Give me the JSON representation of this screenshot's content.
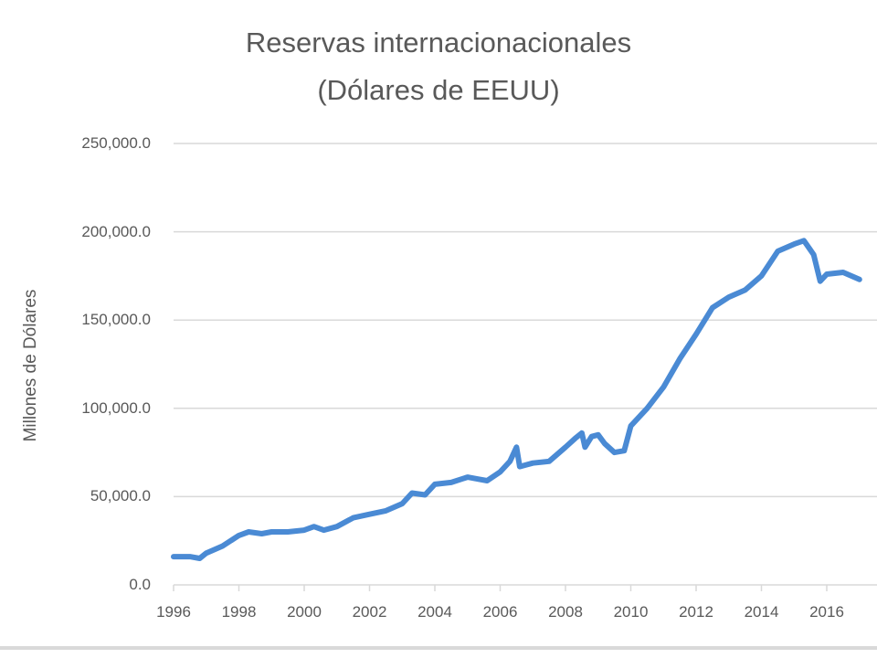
{
  "chart_data": {
    "type": "line",
    "title": "Reservas internacionacionales",
    "subtitle": "(Dólares de EEUU)",
    "xlabel": "",
    "ylabel": "Millones de Dólares",
    "ylim": [
      0,
      250000
    ],
    "grid": true,
    "legend": null,
    "line_color": "#4a8ad4",
    "y_ticks": [
      "0.0",
      "50,000.0",
      "100,000.0",
      "150,000.0",
      "200,000.0",
      "250,000.0"
    ],
    "x_ticks": [
      "1996",
      "1998",
      "2000",
      "2002",
      "2004",
      "2006",
      "2008",
      "2010",
      "2012",
      "2014",
      "2016"
    ],
    "series": [
      {
        "name": "Reservas internacionales",
        "x": [
          1996.0,
          1996.5,
          1996.8,
          1997.0,
          1997.5,
          1998.0,
          1998.3,
          1998.7,
          1999.0,
          1999.5,
          2000.0,
          2000.3,
          2000.6,
          2001.0,
          2001.5,
          2002.0,
          2002.5,
          2003.0,
          2003.3,
          2003.7,
          2004.0,
          2004.5,
          2005.0,
          2005.3,
          2005.6,
          2006.0,
          2006.3,
          2006.5,
          2006.6,
          2006.8,
          2007.0,
          2007.5,
          2008.0,
          2008.3,
          2008.5,
          2008.6,
          2008.8,
          2009.0,
          2009.2,
          2009.5,
          2009.8,
          2010.0,
          2010.5,
          2011.0,
          2011.5,
          2012.0,
          2012.5,
          2013.0,
          2013.5,
          2014.0,
          2014.5,
          2015.0,
          2015.3,
          2015.6,
          2015.8,
          2016.0,
          2016.5,
          2017.0
        ],
        "values": [
          16000,
          16000,
          15000,
          18000,
          22000,
          28000,
          30000,
          29000,
          30000,
          30000,
          31000,
          33000,
          31000,
          33000,
          38000,
          40000,
          42000,
          46000,
          52000,
          51000,
          57000,
          58000,
          61000,
          60000,
          59000,
          64000,
          70000,
          78000,
          67000,
          68000,
          69000,
          70000,
          78000,
          83000,
          86000,
          78000,
          84000,
          85000,
          80000,
          75000,
          76000,
          90000,
          100000,
          112000,
          128000,
          142000,
          157000,
          163000,
          167000,
          175000,
          189000,
          193000,
          195000,
          187000,
          172000,
          176000,
          177000,
          173000
        ]
      }
    ]
  }
}
